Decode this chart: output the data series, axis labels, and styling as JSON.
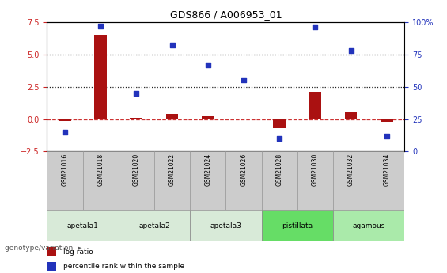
{
  "title": "GDS866 / A006953_01",
  "samples": [
    "GSM21016",
    "GSM21018",
    "GSM21020",
    "GSM21022",
    "GSM21024",
    "GSM21026",
    "GSM21028",
    "GSM21030",
    "GSM21032",
    "GSM21034"
  ],
  "log_ratio": [
    -0.15,
    6.5,
    0.1,
    0.4,
    0.3,
    0.05,
    -0.7,
    2.1,
    0.5,
    -0.2
  ],
  "percentile_rank": [
    15,
    97,
    45,
    82,
    67,
    55,
    10,
    96,
    78,
    12
  ],
  "ylim_left": [
    -2.5,
    7.5
  ],
  "ylim_right": [
    0,
    100
  ],
  "yticks_left": [
    -2.5,
    0.0,
    2.5,
    5.0,
    7.5
  ],
  "yticks_right": [
    0,
    25,
    50,
    75,
    100
  ],
  "bar_color": "#AA1111",
  "dot_color": "#2233BB",
  "zero_line_color": "#CC3333",
  "dotted_line_color": "#222222",
  "groups": [
    {
      "label": "apetala1",
      "samples": [
        "GSM21016",
        "GSM21018"
      ],
      "color": "#d8ead8"
    },
    {
      "label": "apetala2",
      "samples": [
        "GSM21020",
        "GSM21022"
      ],
      "color": "#d8ead8"
    },
    {
      "label": "apetala3",
      "samples": [
        "GSM21024",
        "GSM21026"
      ],
      "color": "#d8ead8"
    },
    {
      "label": "pistillata",
      "samples": [
        "GSM21028",
        "GSM21030"
      ],
      "color": "#66dd66"
    },
    {
      "label": "agamous",
      "samples": [
        "GSM21032",
        "GSM21034"
      ],
      "color": "#aaeaaa"
    }
  ],
  "legend_items": [
    {
      "label": "log ratio",
      "color": "#AA1111"
    },
    {
      "label": "percentile rank within the sample",
      "color": "#2233BB"
    }
  ],
  "genotype_label": "genotype/variation",
  "left_ycolor": "#CC2222",
  "right_ycolor": "#2233BB",
  "sample_box_color": "#cccccc",
  "sample_box_border": "#999999"
}
